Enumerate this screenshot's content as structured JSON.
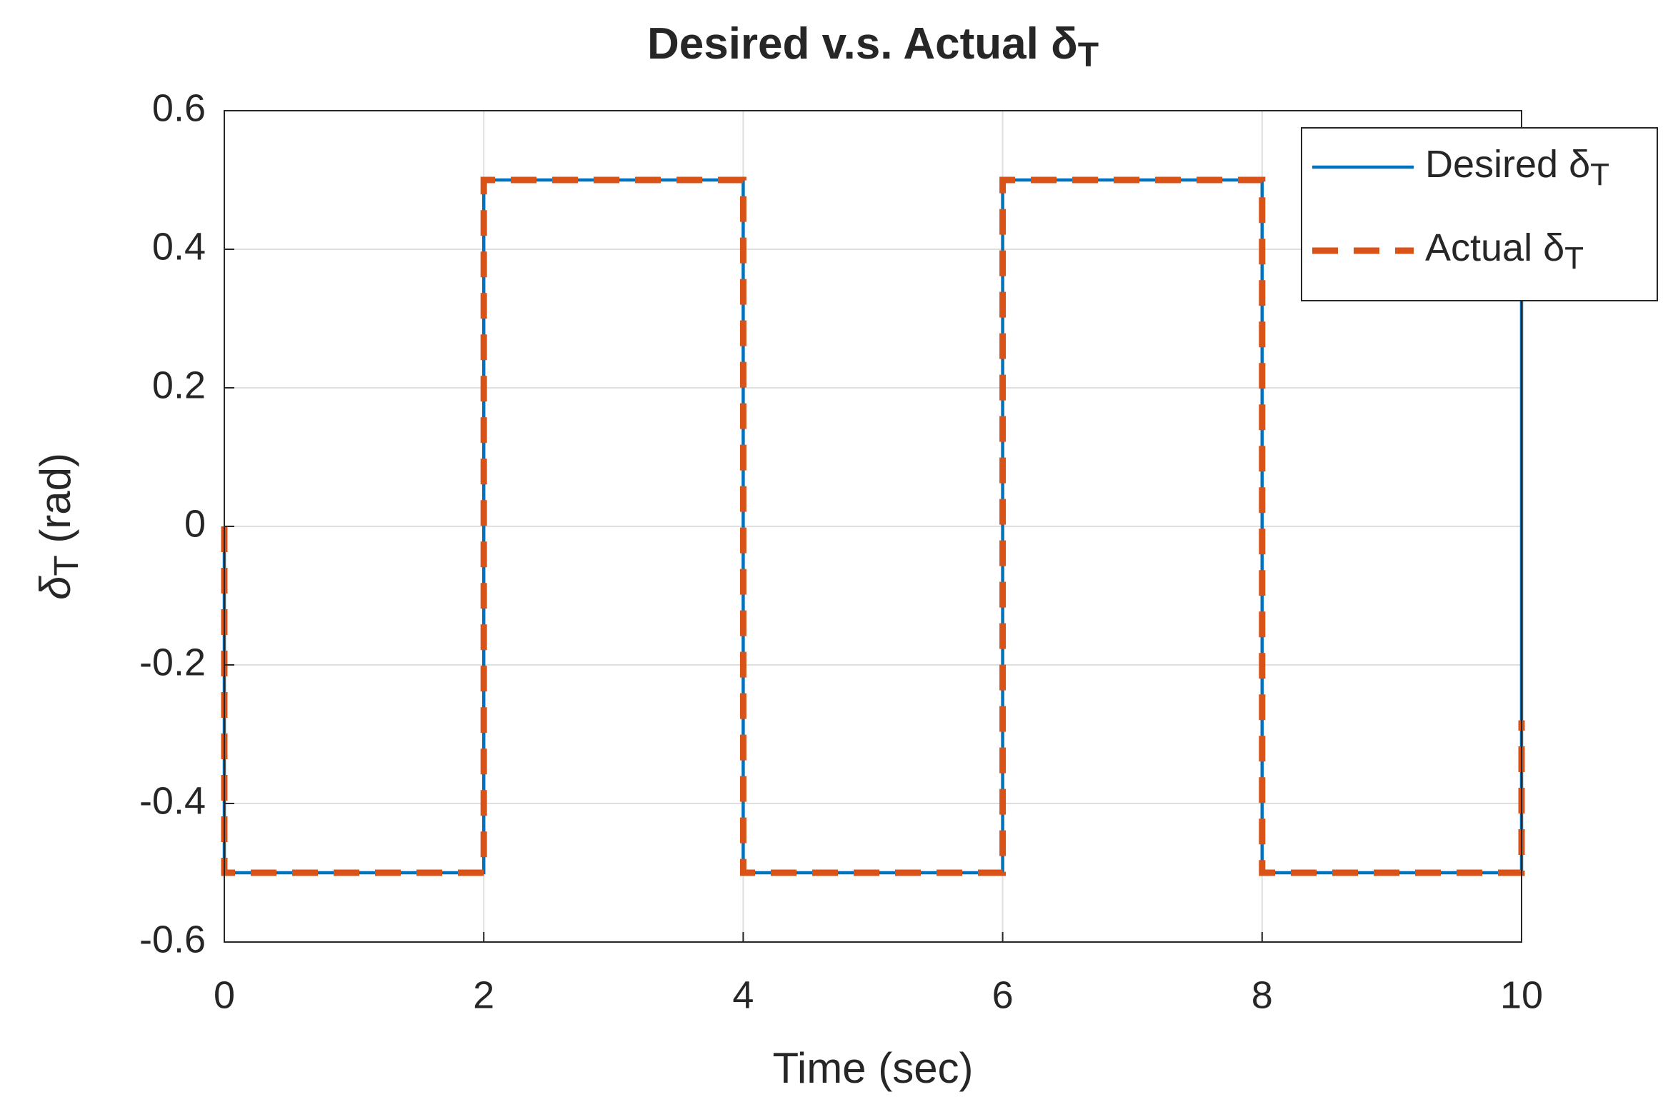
{
  "chart_data": {
    "type": "line",
    "title": "Desired v.s. Actual δ",
    "title_subscript": "T",
    "xlabel": "Time (sec)",
    "ylabel": "δ",
    "ylabel_subscript": "T",
    "ylabel_suffix": " (rad)",
    "xlim": [
      0,
      10
    ],
    "xticks": [
      0,
      2,
      4,
      6,
      8,
      10
    ],
    "ylim": [
      -0.6,
      0.6
    ],
    "yticks": [
      -0.6,
      -0.4,
      -0.2,
      0,
      0.2,
      0.4,
      0.6
    ],
    "grid": true,
    "legend": "upper right",
    "series": [
      {
        "name": "Desired δ",
        "name_subscript": "T",
        "color": "#0072bd",
        "style": "solid",
        "x": [
          0,
          0,
          2,
          2,
          4,
          4,
          6,
          6,
          8,
          8,
          10,
          10
        ],
        "values": [
          0,
          -0.5,
          -0.5,
          0.5,
          0.5,
          -0.5,
          -0.5,
          0.5,
          0.5,
          -0.5,
          -0.5,
          0.5
        ]
      },
      {
        "name": "Actual δ",
        "name_subscript": "T",
        "color": "#d95319",
        "style": "dashed",
        "x": [
          0,
          0,
          2,
          2,
          4,
          4,
          6,
          6,
          8,
          8,
          10,
          10
        ],
        "values": [
          0,
          -0.5,
          -0.5,
          0.5,
          0.5,
          -0.5,
          -0.5,
          0.5,
          0.5,
          -0.5,
          -0.5,
          -0.28
        ]
      }
    ]
  }
}
